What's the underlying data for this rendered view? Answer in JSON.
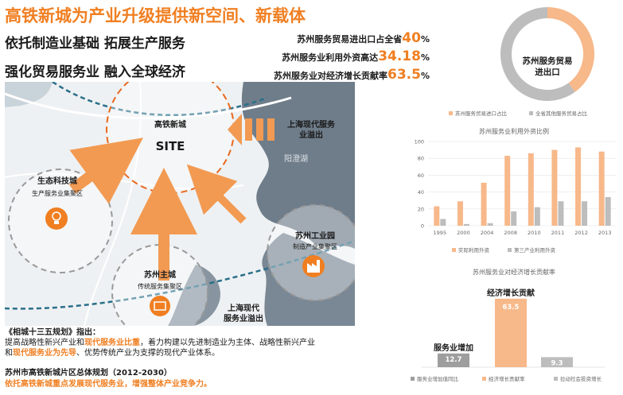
{
  "header": {
    "title": "高铁新城为产业升级提供新空间、新载体",
    "line1": "依托制造业基础  拓展生产服务",
    "line2": "强化贸易服务业  融入全球经济"
  },
  "stats": [
    {
      "label": "苏州服务贸易进出口占全省",
      "value": "40",
      "unit": "%"
    },
    {
      "label": "苏州服务业利用外资高达",
      "value": "34.18",
      "unit": "%"
    },
    {
      "label": "苏州服务业对经济增长贡献率",
      "value": "63.5",
      "unit": "%"
    }
  ],
  "map": {
    "site_title": "高铁新城",
    "site_label": "SITE",
    "lake": "阳澄湖",
    "zone1_title": "生态科技城",
    "zone1_sub": "生产服务业集聚区",
    "zone2_title": "苏州工业园",
    "zone2_sub": "制造产业集聚区",
    "zone3_title": "苏州主城",
    "zone3_sub": "传统服务集聚区",
    "spill1": "上海现代服务\n业溢出",
    "spill2": "上海现代\n服务业溢出"
  },
  "notes": {
    "n1_title": "《相城十三五规划》指出：",
    "n2_a": "提高战略性新兴产业和",
    "n2_hl": "现代服务业比重",
    "n2_b": "，着力构建以先进制造业为主体、战略性新兴产业",
    "n3_a": "和",
    "n3_hl": "现代服务业为先导",
    "n3_b": "、优势传统产业为支撑的现代产业体系。",
    "n4": "苏州市高铁新城片区总体规划（2012-2030）",
    "n5": "依托高铁新城重点发展现代服务业，增强整体产业竞争力。"
  },
  "colors": {
    "accent": "#f07f22",
    "light": "#f7b88a",
    "grey": "#bdbdbd",
    "dark": "#222222",
    "blue": "#2a6f8a"
  },
  "chart_data": [
    {
      "type": "pie",
      "center_label": "苏州服务贸易\n进出口",
      "slices": [
        {
          "name": "苏州服务贸易进口占比",
          "value": 40
        },
        {
          "name": "全省其他服务贸易占比",
          "value": 60
        }
      ]
    },
    {
      "type": "bar",
      "title": "苏州服务业利用外资比例",
      "categories": [
        "1995",
        "2000",
        "2004",
        "2008",
        "2010",
        "2011",
        "2012",
        "2013"
      ],
      "series": [
        {
          "name": "实际利用外资",
          "values": [
            23,
            29,
            51,
            83,
            86,
            90,
            93,
            88
          ]
        },
        {
          "name": "第三产业利用外资",
          "values": [
            8,
            2,
            3,
            17,
            22,
            29,
            29,
            34
          ]
        }
      ],
      "yticks": [
        0,
        20,
        40,
        60,
        80,
        100
      ],
      "ylim": [
        0,
        100
      ]
    },
    {
      "type": "bar",
      "title": "苏州服务业对经济增长贡献率",
      "categories": [
        "服务业增加值同比",
        "经济增长贡献率",
        "拉动社会投资增长"
      ],
      "values": [
        12.7,
        63.5,
        9.3
      ],
      "value_labels": [
        "12.7",
        "63.5",
        "9.3"
      ],
      "annotations": [
        "服务业增加",
        "经济增长贡献"
      ],
      "ylim": [
        0,
        70
      ]
    }
  ]
}
